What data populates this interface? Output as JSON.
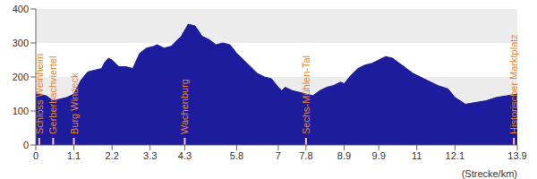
{
  "chart_data": {
    "type": "area",
    "color": "#1c1c9c",
    "x_label": "(Strecke/km)",
    "x": [
      0,
      0.3,
      0.5,
      0.7,
      0.9,
      1.1,
      1.3,
      1.5,
      1.7,
      1.9,
      2.0,
      2.1,
      2.2,
      2.4,
      2.6,
      2.8,
      3.0,
      3.2,
      3.4,
      3.5,
      3.7,
      3.9,
      4.0,
      4.2,
      4.4,
      4.6,
      4.8,
      5.0,
      5.2,
      5.4,
      5.6,
      5.8,
      6.0,
      6.2,
      6.4,
      6.6,
      6.8,
      7.0,
      7.1,
      7.2,
      7.4,
      7.6,
      7.8,
      8.0,
      8.2,
      8.4,
      8.6,
      8.8,
      8.9,
      9.1,
      9.3,
      9.5,
      9.7,
      9.9,
      10.1,
      10.3,
      10.5,
      10.7,
      10.9,
      11.0,
      11.3,
      11.6,
      11.9,
      12.1,
      12.4,
      12.7,
      13.0,
      13.3,
      13.6,
      13.9
    ],
    "values": [
      150,
      145,
      130,
      135,
      140,
      150,
      190,
      215,
      220,
      225,
      245,
      255,
      250,
      230,
      230,
      225,
      270,
      285,
      290,
      295,
      285,
      290,
      300,
      320,
      355,
      350,
      320,
      310,
      295,
      300,
      295,
      270,
      250,
      230,
      210,
      200,
      195,
      170,
      160,
      170,
      160,
      155,
      150,
      145,
      160,
      170,
      175,
      185,
      180,
      205,
      225,
      235,
      240,
      250,
      260,
      255,
      240,
      225,
      210,
      205,
      190,
      175,
      165,
      140,
      120,
      125,
      130,
      140,
      145,
      150
    ],
    "xlim": [
      0,
      13.9
    ],
    "ylim": [
      0,
      400
    ],
    "xticks": [
      0,
      1.1,
      2.2,
      3.3,
      4.3,
      5.8,
      7,
      7.8,
      8.9,
      9.9,
      11,
      12.1,
      13.9
    ],
    "yticks": [
      0,
      100,
      200,
      300,
      400
    ],
    "grid": true,
    "annotations": [
      {
        "x": 0.1,
        "label": "Schloss Weinheim"
      },
      {
        "x": 0.5,
        "label": "Gerberbachviertel"
      },
      {
        "x": 1.1,
        "label": "Burg Windeck"
      },
      {
        "x": 4.3,
        "label": "Wachenburg"
      },
      {
        "x": 7.8,
        "label": "Sechs-Mühlen-Tal"
      },
      {
        "x": 13.8,
        "label": "Historischer Marktplatz"
      }
    ]
  }
}
